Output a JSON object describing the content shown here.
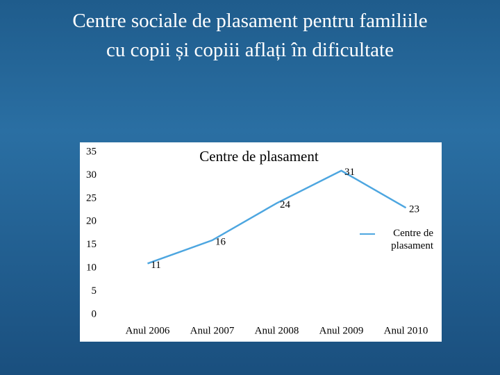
{
  "slide_title": [
    "Centre sociale de plasament pentru familiile",
    "cu copii și copiii aflați în dificultate"
  ],
  "chart_data": {
    "type": "line",
    "title": "Centre de plasament",
    "categories": [
      "Anul 2006",
      "Anul 2007",
      "Anul 2008",
      "Anul 2009",
      "Anul 2010"
    ],
    "series": [
      {
        "name": "Centre de plasament",
        "color": "#4da6e0",
        "values": [
          11,
          16,
          24,
          31,
          23
        ]
      }
    ],
    "ylim": [
      0,
      35
    ],
    "yticks": [
      0,
      5,
      10,
      15,
      20,
      25,
      30,
      35
    ],
    "grid": false,
    "legend": "right"
  }
}
